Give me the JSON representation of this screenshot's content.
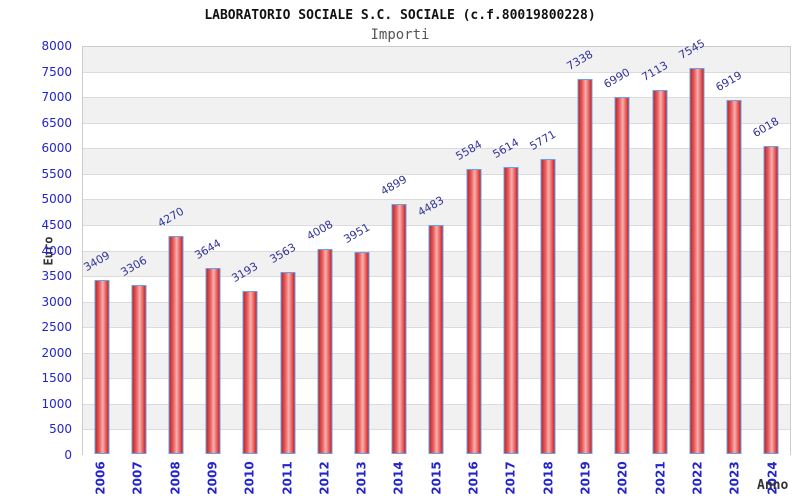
{
  "chart_data": {
    "type": "bar",
    "title": "LABORATORIO SOCIALE S.C. SOCIALE (c.f.80019800228)",
    "subtitle": "Importi",
    "xlabel": "Anno",
    "ylabel": "Euro",
    "categories": [
      "2006",
      "2007",
      "2008",
      "2009",
      "2010",
      "2011",
      "2012",
      "2013",
      "2014",
      "2015",
      "2016",
      "2017",
      "2018",
      "2019",
      "2020",
      "2021",
      "2022",
      "2023",
      "2024"
    ],
    "values": [
      3409,
      3306,
      4270,
      3644,
      3193,
      3563,
      4008,
      3951,
      4899,
      4483,
      5584,
      5614,
      5771,
      7338,
      6990,
      7113,
      7545,
      6919,
      6018
    ],
    "ylim": [
      0,
      8000
    ],
    "ytick_step": 500,
    "grid": true,
    "legend": "none",
    "bands_alternating": true
  },
  "colors": {
    "bar_edge": "#63a3ea",
    "bar_red_dark": "#c62222",
    "bar_red_mid": "#ea6464",
    "bar_red_light": "#f8b0b0",
    "axis_tick_label": "#2424cc",
    "value_label": "#333399",
    "band_gray": "#f1f1f1",
    "band_white": "#ffffff",
    "grid_line": "#dcdcdc",
    "plot_border": "#cccccc",
    "subtitle_text": "#555555",
    "title_text": "#111111",
    "axis_title_text": "#333333"
  }
}
